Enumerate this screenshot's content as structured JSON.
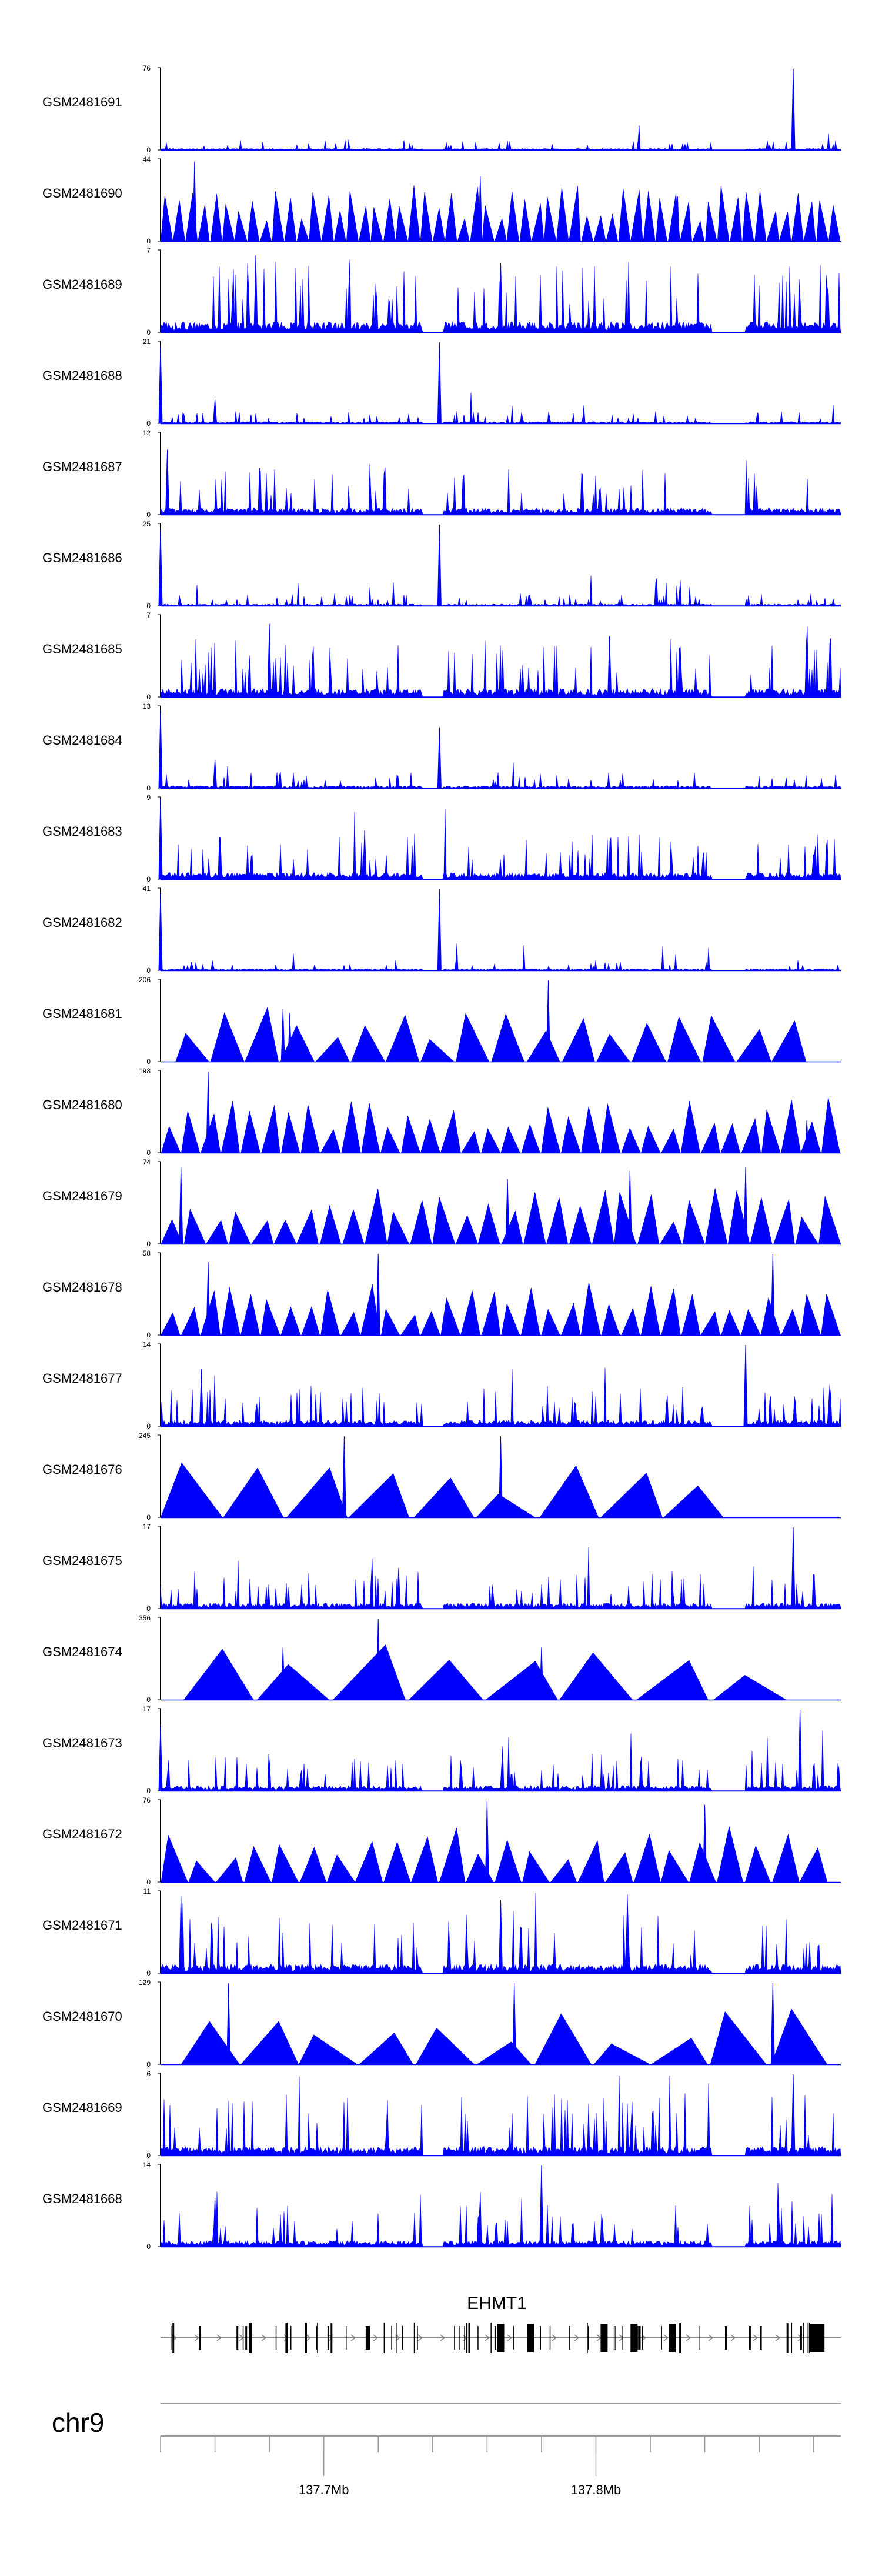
{
  "chart_data": {
    "type": "area",
    "title": "",
    "chromosome": "chr9",
    "x_range_mb": [
      137.64,
      137.89
    ],
    "x_ticks": [
      {
        "value": 137.7,
        "label": "137.7Mb"
      },
      {
        "value": 137.8,
        "label": "137.8Mb"
      }
    ],
    "gene": {
      "name": "EHMT1",
      "start_mb": 137.64,
      "end_mb": 137.89,
      "thick_exons_mb": [
        137.765,
        137.776,
        137.803,
        137.814,
        137.828,
        137.884
      ]
    },
    "tracks": [
      {
        "name": "GSM2481691",
        "ymax": 76,
        "ymin": 0,
        "pattern": "noise",
        "level": 0.05,
        "seed": 1,
        "spikes": [
          {
            "x": 0.93,
            "h": 1.0
          }
        ]
      },
      {
        "name": "GSM2481690",
        "ymax": 44,
        "ymin": 0,
        "pattern": "tri",
        "count": 55,
        "seed": 2,
        "spikes": [
          {
            "x": 0.05,
            "h": 0.98
          },
          {
            "x": 0.47,
            "h": 0.8
          },
          {
            "x": 0.76,
            "h": 0.55
          }
        ]
      },
      {
        "name": "GSM2481689",
        "ymax": 7,
        "ymin": 0,
        "pattern": "noise",
        "level": 0.35,
        "seed": 3,
        "spikes": [
          {
            "x": 0.14,
            "h": 0.95
          },
          {
            "x": 0.5,
            "h": 0.85
          }
        ]
      },
      {
        "name": "GSM2481688",
        "ymax": 21,
        "ymin": 0,
        "pattern": "noise",
        "level": 0.06,
        "seed": 4,
        "spikes": [
          {
            "x": 0.0,
            "h": 0.95
          },
          {
            "x": 0.41,
            "h": 1.0
          },
          {
            "x": 0.08,
            "h": 0.3
          }
        ]
      },
      {
        "name": "GSM2481687",
        "ymax": 12,
        "ymin": 0,
        "pattern": "noise",
        "level": 0.22,
        "seed": 5,
        "spikes": [
          {
            "x": 0.01,
            "h": 0.8
          },
          {
            "x": 0.62,
            "h": 0.5
          }
        ]
      },
      {
        "name": "GSM2481686",
        "ymax": 25,
        "ymin": 0,
        "pattern": "noise",
        "level": 0.06,
        "seed": 6,
        "spikes": [
          {
            "x": 0.0,
            "h": 0.95
          },
          {
            "x": 0.41,
            "h": 1.0
          }
        ]
      },
      {
        "name": "GSM2481685",
        "ymax": 7,
        "ymin": 0,
        "pattern": "noise",
        "level": 0.28,
        "seed": 7,
        "spikes": [
          {
            "x": 0.16,
            "h": 0.9
          },
          {
            "x": 0.66,
            "h": 0.75
          }
        ]
      },
      {
        "name": "GSM2481684",
        "ymax": 13,
        "ymin": 0,
        "pattern": "noise",
        "level": 0.08,
        "seed": 8,
        "spikes": [
          {
            "x": 0.0,
            "h": 0.95
          },
          {
            "x": 0.41,
            "h": 0.75
          },
          {
            "x": 0.08,
            "h": 0.35
          }
        ]
      },
      {
        "name": "GSM2481683",
        "ymax": 9,
        "ymin": 0,
        "pattern": "noise",
        "level": 0.22,
        "seed": 9,
        "spikes": [
          {
            "x": 0.0,
            "h": 1.0
          },
          {
            "x": 0.3,
            "h": 0.6
          }
        ]
      },
      {
        "name": "GSM2481682",
        "ymax": 41,
        "ymin": 0,
        "pattern": "noise",
        "level": 0.05,
        "seed": 10,
        "spikes": [
          {
            "x": 0.0,
            "h": 0.95
          },
          {
            "x": 0.41,
            "h": 1.0
          }
        ]
      },
      {
        "name": "GSM2481681",
        "ymax": 206,
        "ymin": 0,
        "pattern": "tri",
        "count": 18,
        "seed": 11,
        "start": 0.02,
        "end": 0.95,
        "spikes": [
          {
            "x": 0.57,
            "h": 1.0
          },
          {
            "x": 0.18,
            "h": 0.65
          },
          {
            "x": 0.19,
            "h": 0.6
          }
        ]
      },
      {
        "name": "GSM2481680",
        "ymax": 198,
        "ymin": 0,
        "pattern": "tri",
        "count": 34,
        "seed": 12,
        "spikes": [
          {
            "x": 0.07,
            "h": 1.0
          },
          {
            "x": 0.95,
            "h": 0.4
          }
        ]
      },
      {
        "name": "GSM2481679",
        "ymax": 74,
        "ymin": 0,
        "pattern": "tri",
        "count": 30,
        "seed": 13,
        "spikes": [
          {
            "x": 0.03,
            "h": 0.95
          },
          {
            "x": 0.51,
            "h": 0.8
          },
          {
            "x": 0.69,
            "h": 0.9
          },
          {
            "x": 0.86,
            "h": 0.95
          }
        ]
      },
      {
        "name": "GSM2481678",
        "ymax": 58,
        "ymin": 0,
        "pattern": "tri",
        "count": 34,
        "seed": 14,
        "spikes": [
          {
            "x": 0.32,
            "h": 1.0
          },
          {
            "x": 0.9,
            "h": 1.0
          },
          {
            "x": 0.07,
            "h": 0.9
          }
        ]
      },
      {
        "name": "GSM2481677",
        "ymax": 14,
        "ymin": 0,
        "pattern": "noise",
        "level": 0.2,
        "seed": 15,
        "spikes": [
          {
            "x": 0.86,
            "h": 1.0
          },
          {
            "x": 0.06,
            "h": 0.7
          }
        ]
      },
      {
        "name": "GSM2481676",
        "ymax": 245,
        "ymin": 0,
        "pattern": "tri",
        "count": 9,
        "seed": 16,
        "start": 0.0,
        "end": 0.83,
        "spikes": [
          {
            "x": 0.27,
            "h": 1.0
          },
          {
            "x": 0.5,
            "h": 1.0
          }
        ]
      },
      {
        "name": "GSM2481675",
        "ymax": 17,
        "ymin": 0,
        "pattern": "noise",
        "level": 0.18,
        "seed": 17,
        "spikes": [
          {
            "x": 0.93,
            "h": 1.0
          },
          {
            "x": 0.35,
            "h": 0.5
          }
        ]
      },
      {
        "name": "GSM2481674",
        "ymax": 356,
        "ymin": 0,
        "pattern": "tri",
        "count": 8,
        "seed": 18,
        "start": 0.03,
        "end": 0.92,
        "spikes": [
          {
            "x": 0.32,
            "h": 1.0
          },
          {
            "x": 0.18,
            "h": 0.65
          },
          {
            "x": 0.56,
            "h": 0.65
          }
        ]
      },
      {
        "name": "GSM2481673",
        "ymax": 17,
        "ymin": 0,
        "pattern": "noise",
        "level": 0.18,
        "seed": 19,
        "spikes": [
          {
            "x": 0.0,
            "h": 0.8
          },
          {
            "x": 0.94,
            "h": 1.0
          }
        ]
      },
      {
        "name": "GSM2481672",
        "ymax": 76,
        "ymin": 0,
        "pattern": "tri",
        "count": 24,
        "seed": 20,
        "end": 0.98,
        "spikes": [
          {
            "x": 0.48,
            "h": 1.0
          },
          {
            "x": 0.8,
            "h": 0.95
          }
        ]
      },
      {
        "name": "GSM2481671",
        "ymax": 11,
        "ymin": 0,
        "pattern": "noise",
        "level": 0.3,
        "seed": 21,
        "spikes": [
          {
            "x": 0.03,
            "h": 0.95
          },
          {
            "x": 0.5,
            "h": 0.9
          }
        ]
      },
      {
        "name": "GSM2481670",
        "ymax": 129,
        "ymin": 0,
        "pattern": "tri",
        "count": 11,
        "seed": 22,
        "start": 0.03,
        "end": 0.98,
        "spikes": [
          {
            "x": 0.1,
            "h": 1.0
          },
          {
            "x": 0.52,
            "h": 1.0
          },
          {
            "x": 0.9,
            "h": 1.0
          }
        ]
      },
      {
        "name": "GSM2481669",
        "ymax": 6,
        "ymin": 0,
        "pattern": "noise",
        "level": 0.3,
        "seed": 23,
        "spikes": [
          {
            "x": 0.93,
            "h": 1.0
          }
        ]
      },
      {
        "name": "GSM2481668",
        "ymax": 14,
        "ymin": 0,
        "pattern": "noise",
        "level": 0.2,
        "seed": 24,
        "spikes": [
          {
            "x": 0.56,
            "h": 1.0
          },
          {
            "x": 0.08,
            "h": 0.6
          }
        ]
      }
    ]
  },
  "colors": {
    "track_fill": "#0000ff",
    "axis": "#000000",
    "gene": "#000000"
  }
}
